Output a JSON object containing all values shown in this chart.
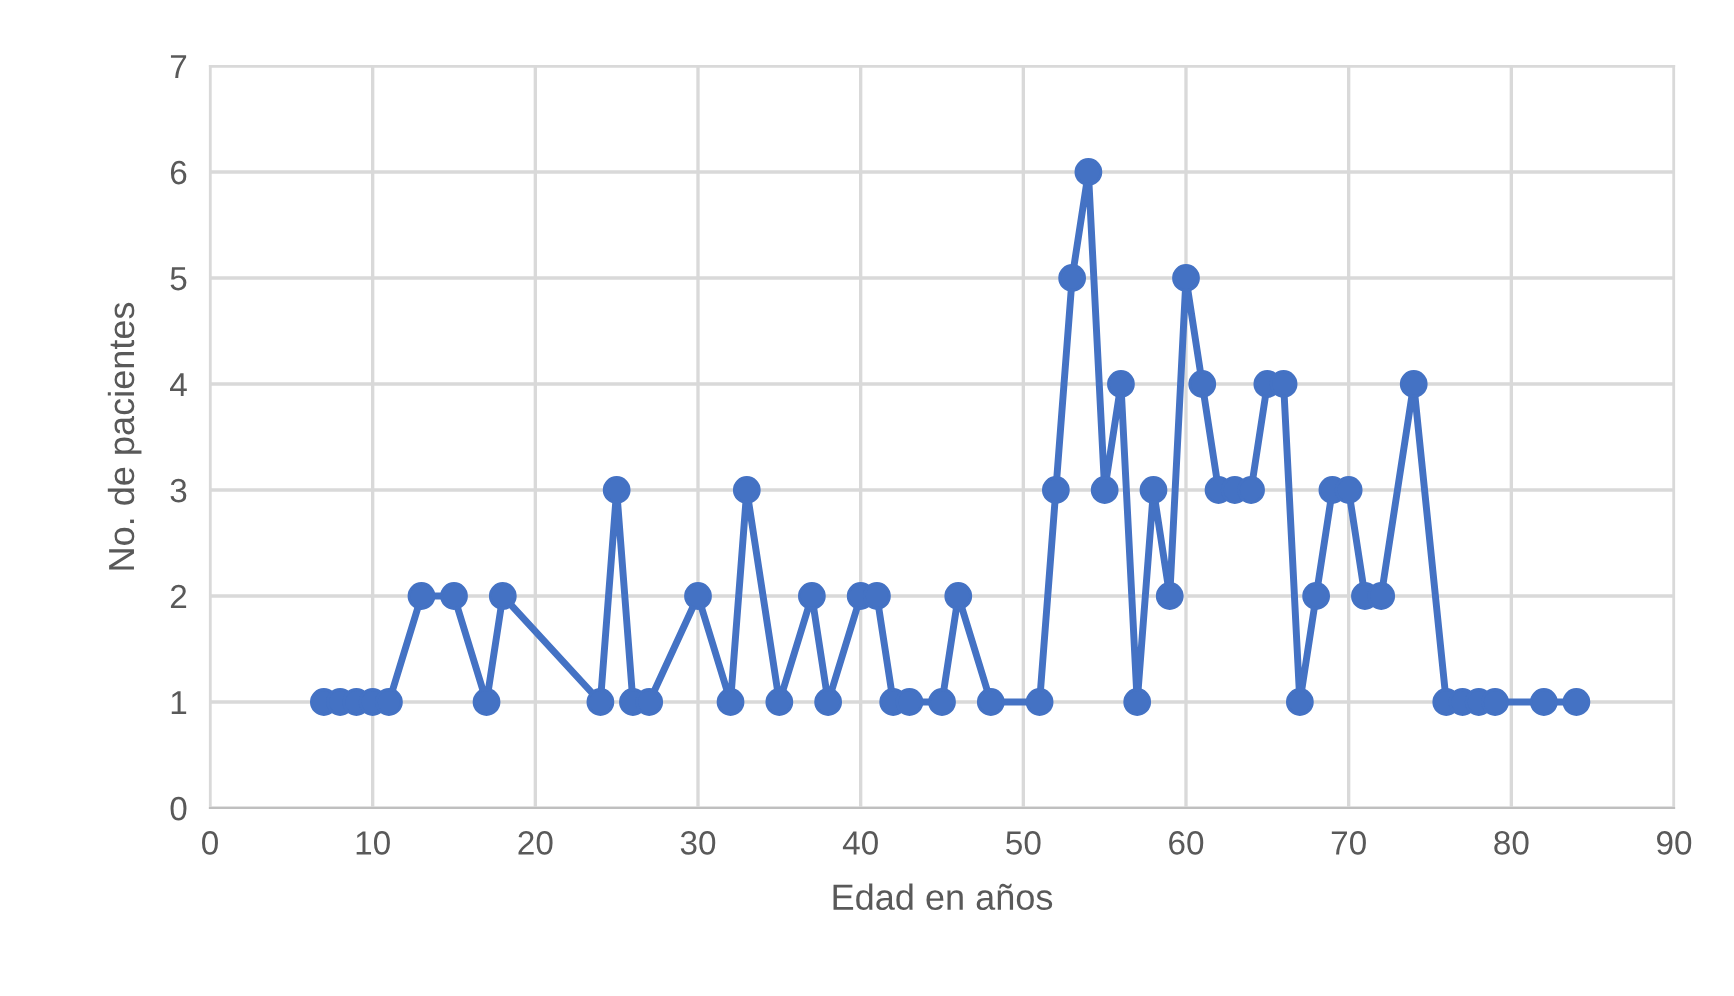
{
  "chart_data": {
    "type": "line",
    "xlabel": "Edad en años",
    "ylabel": "No. de pacientes",
    "x": [
      7,
      8,
      9,
      10,
      11,
      13,
      15,
      17,
      18,
      24,
      25,
      26,
      27,
      30,
      32,
      33,
      35,
      37,
      38,
      40,
      41,
      42,
      43,
      45,
      46,
      48,
      51,
      52,
      53,
      54,
      55,
      56,
      57,
      58,
      59,
      60,
      61,
      62,
      63,
      64,
      65,
      66,
      67,
      68,
      69,
      70,
      71,
      72,
      74,
      76,
      77,
      78,
      79,
      82,
      84
    ],
    "series": [
      {
        "color": "#4472c4",
        "values": [
          1,
          1,
          1,
          1,
          1,
          2,
          2,
          1,
          2,
          1,
          3,
          1,
          1,
          2,
          1,
          3,
          1,
          2,
          1,
          2,
          2,
          1,
          1,
          1,
          2,
          1,
          1,
          3,
          5,
          6,
          3,
          4,
          1,
          3,
          2,
          5,
          4,
          3,
          3,
          3,
          4,
          4,
          1,
          2,
          3,
          3,
          2,
          2,
          4,
          1,
          1,
          1,
          1,
          1,
          1
        ]
      }
    ],
    "xlim": [
      0,
      90
    ],
    "xticks": [
      0,
      10,
      20,
      30,
      40,
      50,
      60,
      70,
      80,
      90
    ],
    "ylim": [
      0,
      7
    ],
    "yticks": [
      0,
      1,
      2,
      3,
      4,
      5,
      6,
      7
    ],
    "grid": true,
    "marker": "circle",
    "line_style": "solid",
    "legend": false
  }
}
